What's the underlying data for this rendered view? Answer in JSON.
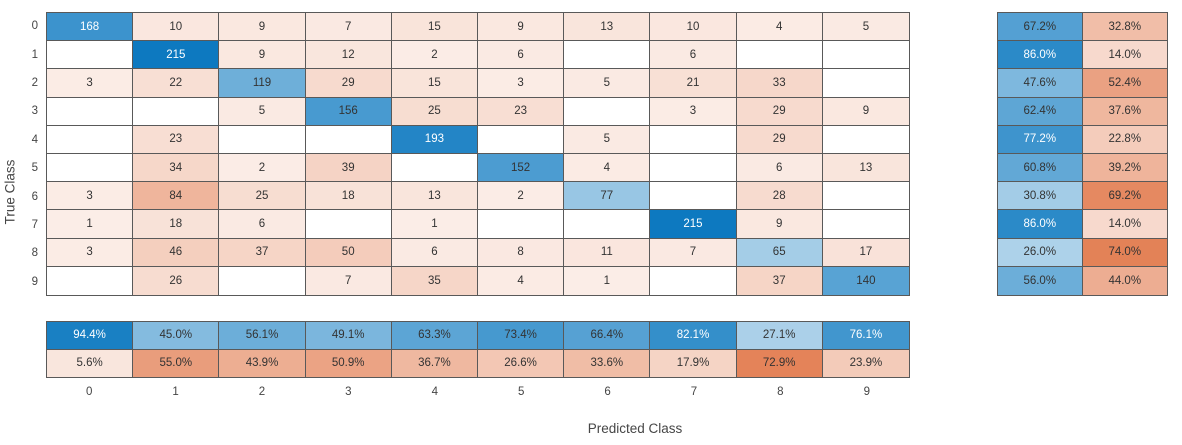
{
  "chart_data": {
    "type": "heatmap",
    "subtype": "confusion-matrix",
    "title": "",
    "xlabel": "Predicted Class",
    "ylabel": "True Class",
    "classes": [
      "0",
      "1",
      "2",
      "3",
      "4",
      "5",
      "6",
      "7",
      "8",
      "9"
    ],
    "matrix": [
      [
        168,
        10,
        9,
        7,
        15,
        9,
        13,
        10,
        4,
        5
      ],
      [
        null,
        215,
        9,
        12,
        2,
        6,
        null,
        6,
        null,
        null
      ],
      [
        3,
        22,
        119,
        29,
        15,
        3,
        5,
        21,
        33,
        null
      ],
      [
        null,
        null,
        5,
        156,
        25,
        23,
        null,
        3,
        29,
        9
      ],
      [
        null,
        23,
        null,
        null,
        193,
        null,
        5,
        null,
        29,
        null
      ],
      [
        null,
        34,
        2,
        39,
        null,
        152,
        4,
        null,
        6,
        13
      ],
      [
        3,
        84,
        25,
        18,
        13,
        2,
        77,
        null,
        28,
        null
      ],
      [
        1,
        18,
        6,
        null,
        1,
        null,
        null,
        215,
        9,
        null
      ],
      [
        3,
        46,
        37,
        50,
        6,
        8,
        11,
        7,
        65,
        17
      ],
      [
        null,
        26,
        null,
        7,
        35,
        4,
        1,
        null,
        37,
        140
      ]
    ],
    "max_value": 215,
    "row_summary": [
      [
        67.2,
        32.8
      ],
      [
        86.0,
        14.0
      ],
      [
        47.6,
        52.4
      ],
      [
        62.4,
        37.6
      ],
      [
        77.2,
        22.8
      ],
      [
        60.8,
        39.2
      ],
      [
        30.8,
        69.2
      ],
      [
        86.0,
        14.0
      ],
      [
        26.0,
        74.0
      ],
      [
        56.0,
        44.0
      ]
    ],
    "column_summary": [
      [
        94.4,
        45.0,
        56.1,
        49.1,
        63.3,
        73.4,
        66.4,
        82.1,
        27.1,
        76.1
      ],
      [
        5.6,
        55.0,
        43.9,
        50.9,
        36.7,
        26.6,
        33.6,
        17.9,
        72.9,
        23.9
      ]
    ],
    "layout": {
      "grid_on": true,
      "row_summary_position": "right",
      "column_summary_position": "bottom"
    },
    "colors": {
      "diagonal_base": "#0072BD",
      "off_diagonal_base": "#D95319",
      "grid_line": "#595959",
      "text_dark": "#333333",
      "text_light": "#ffffff",
      "empty_cell": "#ffffff"
    }
  }
}
